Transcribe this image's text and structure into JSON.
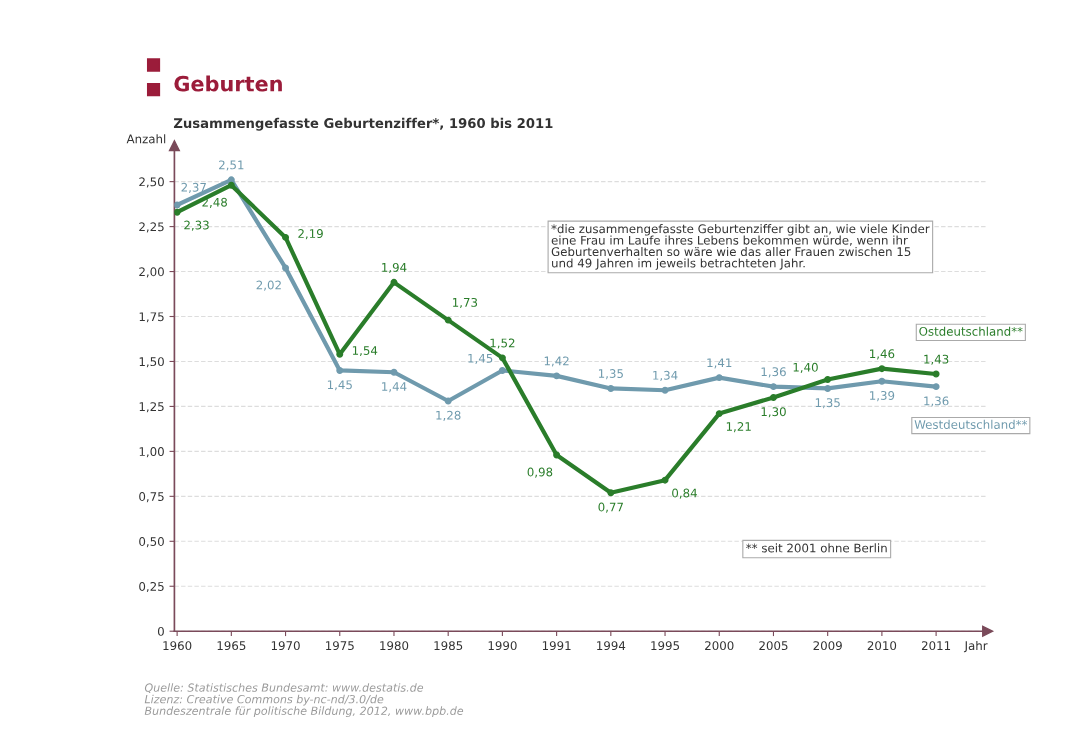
{
  "chart_data": {
    "type": "line",
    "title": "Geburten",
    "subtitle": "Zusammengefasste Geburtenziffer*, 1960 bis 2011",
    "ylabel": "Anzahl",
    "xlabel": "Jahr",
    "categories": [
      "1960",
      "1965",
      "1970",
      "1975",
      "1980",
      "1985",
      "1990",
      "1991",
      "1994",
      "1995",
      "2000",
      "2005",
      "2009",
      "2010",
      "2011"
    ],
    "series": [
      {
        "name": "Westdeutschland**",
        "color": "#6f9aad",
        "values": [
          2.37,
          2.51,
          2.02,
          1.45,
          1.44,
          1.28,
          1.45,
          1.42,
          1.35,
          1.34,
          1.41,
          1.36,
          1.35,
          1.39,
          1.36
        ],
        "value_labels": [
          "2,37",
          "2,51",
          "2,02",
          "1,45",
          "1,44",
          "1,28",
          "1,45",
          "1,42",
          "1,35",
          "1,34",
          "1,41",
          "1,36",
          "1,35",
          "1,39",
          "1,36"
        ]
      },
      {
        "name": "Ostdeutschland**",
        "color": "#2a7d2a",
        "values": [
          2.33,
          2.48,
          2.19,
          1.54,
          1.94,
          1.73,
          1.52,
          0.98,
          0.77,
          0.84,
          1.21,
          1.3,
          1.4,
          1.46,
          1.43
        ],
        "value_labels": [
          "2,33",
          "2,48",
          "2,19",
          "1,54",
          "1,94",
          "1,73",
          "1,52",
          "0,98",
          "0,77",
          "0,84",
          "1,21",
          "1,30",
          "1,40",
          "1,46",
          "1,43"
        ]
      }
    ],
    "ylim": [
      0,
      2.7
    ],
    "yticks": [
      0,
      {
        "value": 0.25,
        "label": "0,25"
      },
      {
        "value": 0.5,
        "label": "0,50"
      },
      {
        "value": 0.75,
        "label": "0,75"
      },
      {
        "value": 1.0,
        "label": "1,00"
      },
      {
        "value": 1.25,
        "label": "1,25"
      },
      {
        "value": 1.5,
        "label": "1,50"
      },
      {
        "value": 1.75,
        "label": "1,75"
      },
      {
        "value": 2.0,
        "label": "2,00"
      },
      {
        "value": 2.25,
        "label": "2,25"
      },
      {
        "value": 2.5,
        "label": "2,50"
      }
    ],
    "grid": "y",
    "marker": "circle",
    "line_style": "solid",
    "legend": false,
    "annotations": [
      "*die zusammengefasste Geburtenziffer gibt an, wie viele Kinder\neine Frau im Laufe ihres Lebens bekommen würde, wenn ihr\nGeburtenverhalten so wäre wie das aller Frauen zwischen 15\nund 49 Jahren im jeweils betrachteten Jahr.",
      "** seit 2001 ohne Berlin",
      "Quelle: Statistisches Bundesamt: www.destatis.de\nLizenz: Creative Commons by-nc-nd/3.0/de\nBundeszentrale für politische Bildung, 2012, www.bpb.de"
    ]
  }
}
